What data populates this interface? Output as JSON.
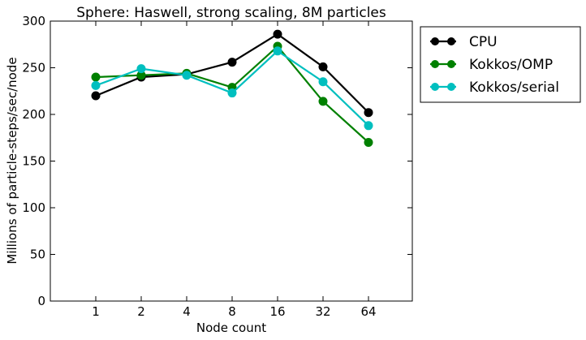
{
  "chart_data": {
    "type": "line",
    "title": "Sphere: Haswell, strong scaling, 8M particles",
    "xlabel": "Node count",
    "ylabel": "Millions of particle-steps/sec/node",
    "categories": [
      "1",
      "2",
      "4",
      "8",
      "16",
      "32",
      "64"
    ],
    "ylim": [
      0,
      300
    ],
    "yticks": [
      0,
      50,
      100,
      150,
      200,
      250,
      300
    ],
    "grid": false,
    "legend_position": "outside-right-top",
    "series": [
      {
        "name": "CPU",
        "color": "#000000",
        "values": [
          220,
          240,
          243,
          256,
          286,
          251,
          202
        ]
      },
      {
        "name": "Kokkos/OMP",
        "color": "#008000",
        "values": [
          240,
          242,
          244,
          229,
          273,
          214,
          170
        ]
      },
      {
        "name": "Kokkos/serial",
        "color": "#00bfbf",
        "values": [
          231,
          249,
          242,
          223,
          268,
          235,
          188
        ]
      }
    ]
  }
}
